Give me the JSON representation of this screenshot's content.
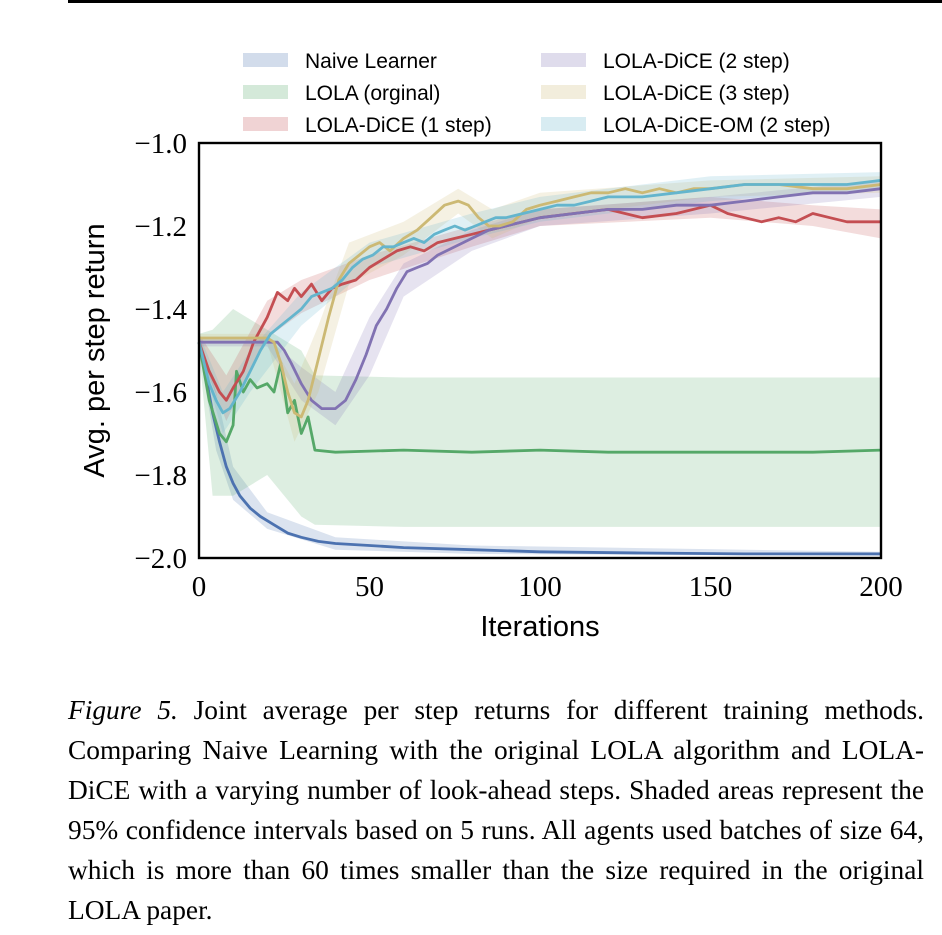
{
  "chart_data": {
    "type": "line",
    "xlabel": "Iterations",
    "ylabel": "Avg. per step return",
    "xlim": [
      0,
      200
    ],
    "ylim": [
      -2.0,
      -1.0
    ],
    "xticks": [
      0,
      50,
      100,
      150,
      200
    ],
    "xtick_labels": [
      "0",
      "50",
      "100",
      "150",
      "200"
    ],
    "yticks": [
      -1.0,
      -1.2,
      -1.4,
      -1.6,
      -1.8,
      -2.0
    ],
    "ytick_labels": [
      "−1.0",
      "−1.2",
      "−1.4",
      "−1.6",
      "−1.8",
      "−2.0"
    ],
    "grid": false,
    "legend_position": "top",
    "series": [
      {
        "name": "Naive Learner",
        "color": "#4c72b0",
        "points": [
          [
            0,
            -1.48
          ],
          [
            2,
            -1.56
          ],
          [
            4,
            -1.65
          ],
          [
            6,
            -1.72
          ],
          [
            8,
            -1.78
          ],
          [
            10,
            -1.82
          ],
          [
            12,
            -1.85
          ],
          [
            15,
            -1.88
          ],
          [
            18,
            -1.9
          ],
          [
            22,
            -1.92
          ],
          [
            26,
            -1.94
          ],
          [
            30,
            -1.95
          ],
          [
            35,
            -1.96
          ],
          [
            40,
            -1.965
          ],
          [
            50,
            -1.97
          ],
          [
            60,
            -1.975
          ],
          [
            80,
            -1.98
          ],
          [
            100,
            -1.985
          ],
          [
            130,
            -1.988
          ],
          [
            160,
            -1.99
          ],
          [
            200,
            -1.99
          ]
        ],
        "band": [
          [
            0,
            -1.46,
            -1.5
          ],
          [
            5,
            -1.6,
            -1.74
          ],
          [
            10,
            -1.78,
            -1.86
          ],
          [
            20,
            -1.89,
            -1.93
          ],
          [
            40,
            -1.95,
            -1.98
          ],
          [
            80,
            -1.97,
            -1.99
          ],
          [
            200,
            -1.985,
            -1.995
          ]
        ]
      },
      {
        "name": "LOLA (orginal)",
        "color": "#55a868",
        "points": [
          [
            0,
            -1.48
          ],
          [
            3,
            -1.62
          ],
          [
            6,
            -1.7
          ],
          [
            8,
            -1.72
          ],
          [
            10,
            -1.68
          ],
          [
            11,
            -1.55
          ],
          [
            13,
            -1.6
          ],
          [
            15,
            -1.57
          ],
          [
            17,
            -1.59
          ],
          [
            20,
            -1.58
          ],
          [
            22,
            -1.6
          ],
          [
            24,
            -1.53
          ],
          [
            26,
            -1.65
          ],
          [
            28,
            -1.62
          ],
          [
            30,
            -1.7
          ],
          [
            32,
            -1.66
          ],
          [
            34,
            -1.74
          ],
          [
            40,
            -1.745
          ],
          [
            60,
            -1.74
          ],
          [
            80,
            -1.745
          ],
          [
            100,
            -1.74
          ],
          [
            120,
            -1.745
          ],
          [
            150,
            -1.745
          ],
          [
            180,
            -1.745
          ],
          [
            200,
            -1.74
          ]
        ],
        "band": [
          [
            0,
            -1.46,
            -1.5
          ],
          [
            4,
            -1.45,
            -1.85
          ],
          [
            10,
            -1.4,
            -1.85
          ],
          [
            20,
            -1.45,
            -1.8
          ],
          [
            30,
            -1.5,
            -1.9
          ],
          [
            34,
            -1.56,
            -1.92
          ],
          [
            60,
            -1.565,
            -1.925
          ],
          [
            100,
            -1.565,
            -1.925
          ],
          [
            200,
            -1.565,
            -1.925
          ]
        ]
      },
      {
        "name": "LOLA-DiCE (1 step)",
        "color": "#c44e52",
        "points": [
          [
            0,
            -1.48
          ],
          [
            3,
            -1.55
          ],
          [
            6,
            -1.6
          ],
          [
            8,
            -1.62
          ],
          [
            10,
            -1.59
          ],
          [
            13,
            -1.55
          ],
          [
            16,
            -1.48
          ],
          [
            20,
            -1.42
          ],
          [
            23,
            -1.36
          ],
          [
            26,
            -1.38
          ],
          [
            28,
            -1.35
          ],
          [
            30,
            -1.37
          ],
          [
            33,
            -1.34
          ],
          [
            36,
            -1.38
          ],
          [
            39,
            -1.35
          ],
          [
            42,
            -1.34
          ],
          [
            46,
            -1.33
          ],
          [
            50,
            -1.3
          ],
          [
            54,
            -1.28
          ],
          [
            58,
            -1.26
          ],
          [
            62,
            -1.25
          ],
          [
            66,
            -1.26
          ],
          [
            70,
            -1.24
          ],
          [
            75,
            -1.23
          ],
          [
            80,
            -1.22
          ],
          [
            85,
            -1.21
          ],
          [
            90,
            -1.2
          ],
          [
            95,
            -1.19
          ],
          [
            100,
            -1.18
          ],
          [
            110,
            -1.17
          ],
          [
            120,
            -1.16
          ],
          [
            130,
            -1.18
          ],
          [
            140,
            -1.17
          ],
          [
            150,
            -1.15
          ],
          [
            155,
            -1.17
          ],
          [
            160,
            -1.18
          ],
          [
            165,
            -1.19
          ],
          [
            170,
            -1.18
          ],
          [
            175,
            -1.19
          ],
          [
            180,
            -1.17
          ],
          [
            185,
            -1.18
          ],
          [
            190,
            -1.19
          ],
          [
            195,
            -1.19
          ],
          [
            200,
            -1.19
          ]
        ],
        "band": [
          [
            0,
            -1.46,
            -1.5
          ],
          [
            8,
            -1.56,
            -1.67
          ],
          [
            20,
            -1.38,
            -1.47
          ],
          [
            30,
            -1.33,
            -1.41
          ],
          [
            50,
            -1.27,
            -1.33
          ],
          [
            80,
            -1.2,
            -1.25
          ],
          [
            100,
            -1.16,
            -1.2
          ],
          [
            150,
            -1.13,
            -1.18
          ],
          [
            180,
            -1.15,
            -1.2
          ],
          [
            200,
            -1.16,
            -1.23
          ]
        ]
      },
      {
        "name": "LOLA-DiCE (2 step)",
        "color": "#8172b2",
        "points": [
          [
            0,
            -1.48
          ],
          [
            5,
            -1.48
          ],
          [
            10,
            -1.48
          ],
          [
            15,
            -1.48
          ],
          [
            20,
            -1.48
          ],
          [
            23,
            -1.48
          ],
          [
            25,
            -1.5
          ],
          [
            27,
            -1.53
          ],
          [
            30,
            -1.58
          ],
          [
            33,
            -1.62
          ],
          [
            36,
            -1.64
          ],
          [
            40,
            -1.64
          ],
          [
            43,
            -1.62
          ],
          [
            46,
            -1.57
          ],
          [
            49,
            -1.51
          ],
          [
            52,
            -1.44
          ],
          [
            55,
            -1.4
          ],
          [
            58,
            -1.35
          ],
          [
            61,
            -1.31
          ],
          [
            64,
            -1.3
          ],
          [
            67,
            -1.29
          ],
          [
            70,
            -1.27
          ],
          [
            75,
            -1.25
          ],
          [
            80,
            -1.23
          ],
          [
            85,
            -1.21
          ],
          [
            90,
            -1.2
          ],
          [
            95,
            -1.19
          ],
          [
            100,
            -1.18
          ],
          [
            110,
            -1.17
          ],
          [
            120,
            -1.16
          ],
          [
            130,
            -1.16
          ],
          [
            140,
            -1.15
          ],
          [
            150,
            -1.15
          ],
          [
            160,
            -1.14
          ],
          [
            170,
            -1.13
          ],
          [
            180,
            -1.12
          ],
          [
            190,
            -1.12
          ],
          [
            200,
            -1.11
          ]
        ],
        "band": [
          [
            0,
            -1.47,
            -1.49
          ],
          [
            20,
            -1.47,
            -1.49
          ],
          [
            30,
            -1.54,
            -1.62
          ],
          [
            40,
            -1.6,
            -1.68
          ],
          [
            50,
            -1.42,
            -1.56
          ],
          [
            60,
            -1.29,
            -1.37
          ],
          [
            80,
            -1.21,
            -1.26
          ],
          [
            100,
            -1.16,
            -1.2
          ],
          [
            150,
            -1.13,
            -1.17
          ],
          [
            200,
            -1.09,
            -1.13
          ]
        ]
      },
      {
        "name": "LOLA-DiCE (3 step)",
        "color": "#ccb974",
        "points": [
          [
            0,
            -1.47
          ],
          [
            5,
            -1.47
          ],
          [
            10,
            -1.47
          ],
          [
            15,
            -1.47
          ],
          [
            20,
            -1.47
          ],
          [
            22,
            -1.48
          ],
          [
            24,
            -1.53
          ],
          [
            26,
            -1.6
          ],
          [
            28,
            -1.65
          ],
          [
            30,
            -1.66
          ],
          [
            32,
            -1.62
          ],
          [
            35,
            -1.52
          ],
          [
            38,
            -1.42
          ],
          [
            41,
            -1.33
          ],
          [
            44,
            -1.29
          ],
          [
            47,
            -1.27
          ],
          [
            50,
            -1.25
          ],
          [
            53,
            -1.24
          ],
          [
            56,
            -1.26
          ],
          [
            60,
            -1.23
          ],
          [
            64,
            -1.21
          ],
          [
            68,
            -1.18
          ],
          [
            72,
            -1.15
          ],
          [
            76,
            -1.14
          ],
          [
            79,
            -1.15
          ],
          [
            82,
            -1.18
          ],
          [
            85,
            -1.2
          ],
          [
            88,
            -1.2
          ],
          [
            92,
            -1.19
          ],
          [
            96,
            -1.16
          ],
          [
            100,
            -1.15
          ],
          [
            105,
            -1.14
          ],
          [
            110,
            -1.13
          ],
          [
            115,
            -1.12
          ],
          [
            120,
            -1.12
          ],
          [
            125,
            -1.11
          ],
          [
            130,
            -1.12
          ],
          [
            135,
            -1.11
          ],
          [
            140,
            -1.12
          ],
          [
            145,
            -1.11
          ],
          [
            150,
            -1.11
          ],
          [
            160,
            -1.1
          ],
          [
            170,
            -1.1
          ],
          [
            180,
            -1.11
          ],
          [
            190,
            -1.11
          ],
          [
            200,
            -1.1
          ]
        ],
        "band": [
          [
            0,
            -1.46,
            -1.48
          ],
          [
            20,
            -1.46,
            -1.48
          ],
          [
            28,
            -1.58,
            -1.72
          ],
          [
            35,
            -1.44,
            -1.6
          ],
          [
            44,
            -1.24,
            -1.34
          ],
          [
            60,
            -1.19,
            -1.27
          ],
          [
            76,
            -1.11,
            -1.17
          ],
          [
            86,
            -1.16,
            -1.23
          ],
          [
            100,
            -1.12,
            -1.18
          ],
          [
            150,
            -1.09,
            -1.13
          ],
          [
            200,
            -1.08,
            -1.12
          ]
        ]
      },
      {
        "name": "LOLA-DiCE-OM (2 step)",
        "color": "#64b5cd",
        "points": [
          [
            0,
            -1.48
          ],
          [
            3,
            -1.58
          ],
          [
            5,
            -1.62
          ],
          [
            7,
            -1.65
          ],
          [
            9,
            -1.64
          ],
          [
            12,
            -1.6
          ],
          [
            15,
            -1.55
          ],
          [
            18,
            -1.5
          ],
          [
            21,
            -1.46
          ],
          [
            24,
            -1.44
          ],
          [
            27,
            -1.42
          ],
          [
            30,
            -1.4
          ],
          [
            33,
            -1.37
          ],
          [
            36,
            -1.36
          ],
          [
            39,
            -1.35
          ],
          [
            42,
            -1.33
          ],
          [
            45,
            -1.3
          ],
          [
            48,
            -1.28
          ],
          [
            51,
            -1.27
          ],
          [
            54,
            -1.25
          ],
          [
            57,
            -1.25
          ],
          [
            60,
            -1.24
          ],
          [
            63,
            -1.23
          ],
          [
            66,
            -1.24
          ],
          [
            69,
            -1.22
          ],
          [
            72,
            -1.21
          ],
          [
            75,
            -1.2
          ],
          [
            78,
            -1.21
          ],
          [
            81,
            -1.2
          ],
          [
            84,
            -1.19
          ],
          [
            87,
            -1.18
          ],
          [
            90,
            -1.18
          ],
          [
            95,
            -1.17
          ],
          [
            100,
            -1.16
          ],
          [
            105,
            -1.15
          ],
          [
            110,
            -1.15
          ],
          [
            115,
            -1.14
          ],
          [
            120,
            -1.13
          ],
          [
            130,
            -1.13
          ],
          [
            140,
            -1.12
          ],
          [
            150,
            -1.11
          ],
          [
            160,
            -1.1
          ],
          [
            170,
            -1.1
          ],
          [
            180,
            -1.1
          ],
          [
            190,
            -1.1
          ],
          [
            200,
            -1.09
          ]
        ],
        "band": [
          [
            0,
            -1.46,
            -1.5
          ],
          [
            7,
            -1.6,
            -1.7
          ],
          [
            15,
            -1.5,
            -1.6
          ],
          [
            30,
            -1.36,
            -1.44
          ],
          [
            50,
            -1.24,
            -1.3
          ],
          [
            80,
            -1.17,
            -1.23
          ],
          [
            100,
            -1.13,
            -1.19
          ],
          [
            150,
            -1.08,
            -1.14
          ],
          [
            200,
            -1.07,
            -1.11
          ]
        ]
      }
    ]
  },
  "caption": {
    "label": "Figure 5.",
    "text": "Joint average per step returns for different training methods. Comparing Naive Learning with the original LOLA algorithm and LOLA-DiCE with a varying number of look-ahead steps. Shaded areas represent the 95% confidence intervals based on 5 runs. All agents used batches of size 64, which is more than 60 times smaller than the size required in the original LOLA paper."
  }
}
